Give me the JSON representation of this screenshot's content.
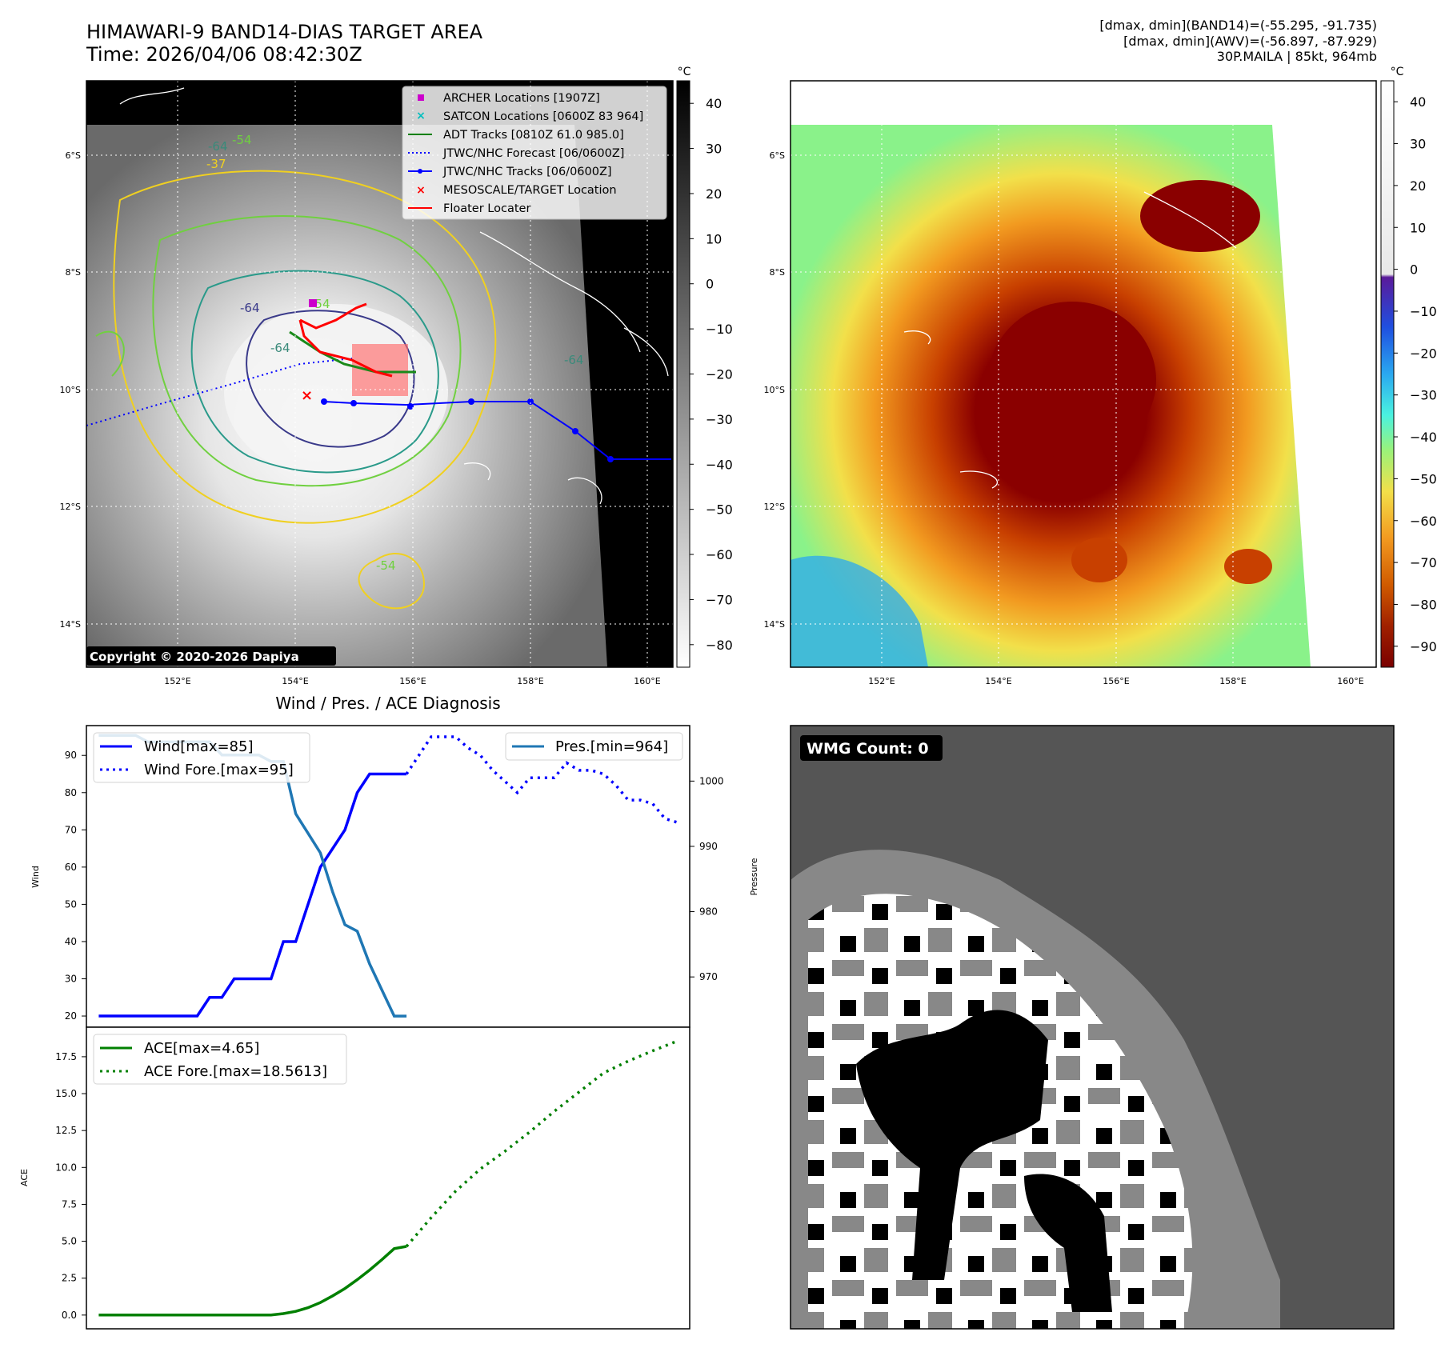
{
  "header": {
    "title": "HIMAWARI-9 BAND14-DIAS TARGET AREA",
    "time": "Time: 2026/04/06 08:42:30Z",
    "meta_line1": "[dmax, dmin](BAND14)=(-55.295, -91.735)",
    "meta_line2": "[dmax, dmin](AWV)=(-56.897, -87.929)",
    "meta_line3": "30P.MAILA | 85kt, 964mb"
  },
  "map": {
    "lat_labels": [
      "6°S",
      "8°S",
      "10°S",
      "12°S",
      "14°S"
    ],
    "lon_labels": [
      "152°E",
      "154°E",
      "156°E",
      "158°E",
      "160°E"
    ],
    "colorbar_unit": "°C",
    "ir_colorbar_ticks": [
      "40",
      "30",
      "20",
      "10",
      "0",
      "−10",
      "−20",
      "−30",
      "−40",
      "−50",
      "−60",
      "−70",
      "−80"
    ],
    "awv_colorbar_ticks": [
      "40",
      "30",
      "20",
      "10",
      "0",
      "−10",
      "−20",
      "−30",
      "−40",
      "−50",
      "−60",
      "−70",
      "−80",
      "−90"
    ],
    "contour_labels": [
      "-64",
      "-54",
      "-37",
      "-64",
      "-64",
      "-54",
      "-64",
      "-54"
    ],
    "copyright": "Copyright © 2020-2026 Dapiya",
    "legend": [
      {
        "label": "ARCHER Locations [1907Z]",
        "color": "#cc00cc",
        "marker": "square"
      },
      {
        "label": "SATCON Locations [0600Z 83 964]",
        "color": "#00bfbf",
        "marker": "x"
      },
      {
        "label": "ADT Tracks [0810Z 61.0 985.0]",
        "color": "#008000",
        "marker": "line"
      },
      {
        "label": "JTWC/NHC Forecast [06/0600Z]",
        "color": "#0000ff",
        "marker": "dotted"
      },
      {
        "label": "JTWC/NHC Tracks [06/0600Z]",
        "color": "#0000ff",
        "marker": "line-dot"
      },
      {
        "label": "MESOSCALE/TARGET Location",
        "color": "#ff0000",
        "marker": "x"
      },
      {
        "label": "Floater Locater",
        "color": "#ff0000",
        "marker": "line"
      }
    ]
  },
  "wmg": {
    "count_label": "WMG Count: 0"
  },
  "chart_data": [
    {
      "type": "line",
      "title": "Wind / Pres. / ACE Diagnosis",
      "ylabel": "Wind",
      "ylabel_right": "Pressure",
      "ylim": [
        17,
        98
      ],
      "ylim_right": [
        962.3,
        1008.5
      ],
      "y_ticks": [
        20,
        30,
        40,
        50,
        60,
        70,
        80,
        90
      ],
      "y_ticks_right": [
        970,
        980,
        990,
        1000
      ],
      "x_range": [
        -1,
        48
      ],
      "series": [
        {
          "name": "Wind[max=85]",
          "color": "#0000ff",
          "style": "solid",
          "x": [
            0,
            1,
            2,
            3,
            4,
            5,
            6,
            7,
            8,
            9,
            10,
            11,
            12,
            13,
            14,
            15,
            16,
            17,
            18,
            19,
            20,
            21,
            22,
            23,
            24,
            25
          ],
          "values": [
            20,
            20,
            20,
            20,
            20,
            20,
            20,
            20,
            20,
            25,
            25,
            30,
            30,
            30,
            30,
            40,
            40,
            50,
            60,
            65,
            70,
            80,
            85,
            85,
            85,
            85
          ]
        },
        {
          "name": "Wind Fore.[max=95]",
          "color": "#0000ff",
          "style": "dotted",
          "x": [
            25,
            26,
            27,
            28,
            29,
            30,
            31,
            32,
            33,
            34,
            35,
            36,
            37,
            38,
            39,
            40,
            41,
            42,
            43,
            44,
            45,
            46,
            47
          ],
          "values": [
            85,
            90,
            95,
            95,
            95,
            92,
            90,
            86,
            83,
            80,
            84,
            84,
            84,
            88,
            86,
            86,
            85,
            82,
            78,
            78,
            77,
            73,
            72
          ]
        },
        {
          "name": "Pres.[min=964]",
          "color": "#1f77b4",
          "style": "solid",
          "axis": "right",
          "x": [
            0,
            1,
            2,
            3,
            4,
            5,
            6,
            7,
            8,
            9,
            10,
            11,
            12,
            13,
            14,
            15,
            16,
            17,
            18,
            19,
            20,
            21,
            22,
            23,
            24,
            25
          ],
          "values": [
            1007,
            1007,
            1007,
            1007,
            1006,
            1006,
            1006,
            1006,
            1006,
            1006,
            1004,
            1004,
            1004,
            1004,
            1003,
            1003,
            995,
            992,
            989,
            983,
            978,
            977,
            972,
            968,
            964,
            964
          ]
        }
      ]
    },
    {
      "type": "line",
      "title": "",
      "ylabel": "ACE",
      "ylim": [
        -0.93,
        19.5
      ],
      "y_ticks": [
        0.0,
        2.5,
        5.0,
        7.5,
        10.0,
        12.5,
        15.0,
        17.5
      ],
      "x_range": [
        -1,
        48
      ],
      "series": [
        {
          "name": "ACE[max=4.65]",
          "color": "#008000",
          "style": "solid",
          "x": [
            0,
            2,
            4,
            6,
            8,
            10,
            12,
            14,
            15,
            16,
            17,
            18,
            19,
            20,
            21,
            22,
            23,
            24,
            25
          ],
          "values": [
            0,
            0,
            0,
            0,
            0,
            0,
            0,
            0,
            0.1,
            0.25,
            0.5,
            0.85,
            1.3,
            1.8,
            2.4,
            3.05,
            3.75,
            4.5,
            4.65
          ]
        },
        {
          "name": "ACE Fore.[max=18.5613]",
          "color": "#008000",
          "style": "dotted",
          "x": [
            25,
            27,
            29,
            31,
            33,
            35,
            37,
            39,
            41,
            43,
            45,
            47
          ],
          "values": [
            4.65,
            6.6,
            8.4,
            9.9,
            11.1,
            12.4,
            13.8,
            15.1,
            16.4,
            17.2,
            17.9,
            18.56
          ]
        }
      ]
    }
  ]
}
